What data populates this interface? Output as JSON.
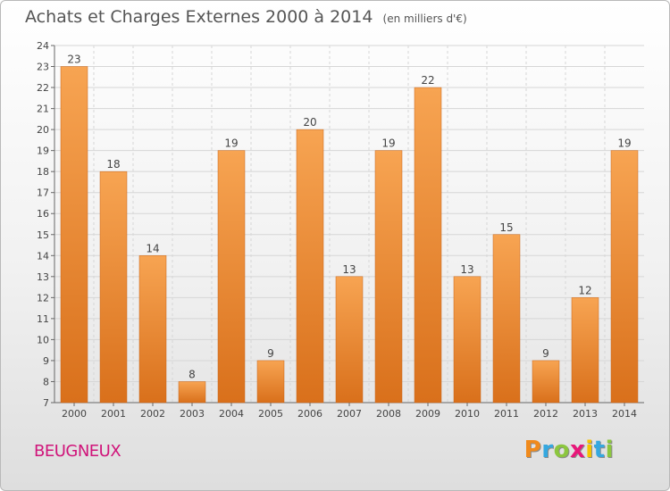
{
  "chart_data": {
    "type": "bar",
    "title": "Achats et Charges Externes 2000 à 2014",
    "unit_label": "(en milliers d'€)",
    "categories": [
      "2000",
      "2001",
      "2002",
      "2003",
      "2004",
      "2005",
      "2006",
      "2007",
      "2008",
      "2009",
      "2010",
      "2011",
      "2012",
      "2013",
      "2014"
    ],
    "values": [
      23,
      18,
      14,
      8,
      19,
      9,
      20,
      13,
      19,
      22,
      13,
      15,
      9,
      12,
      19
    ],
    "ylim": [
      7,
      24
    ],
    "yticks": [
      "7",
      "8",
      "9",
      "10",
      "11",
      "12",
      "13",
      "14",
      "15",
      "16",
      "17",
      "18",
      "19",
      "20",
      "21",
      "22",
      "23",
      "24"
    ],
    "grid": true,
    "bar_color": "#f29a3e"
  },
  "footer": {
    "place_name": "BEUGNEUX",
    "brand_letters": [
      "P",
      "r",
      "o",
      "x",
      "i",
      "t",
      "i"
    ],
    "brand_colors": [
      "#f08a1c",
      "#35a8e0",
      "#8cc63f",
      "#e8177a",
      "#f5c400",
      "#35a8e0",
      "#8cc63f"
    ]
  }
}
